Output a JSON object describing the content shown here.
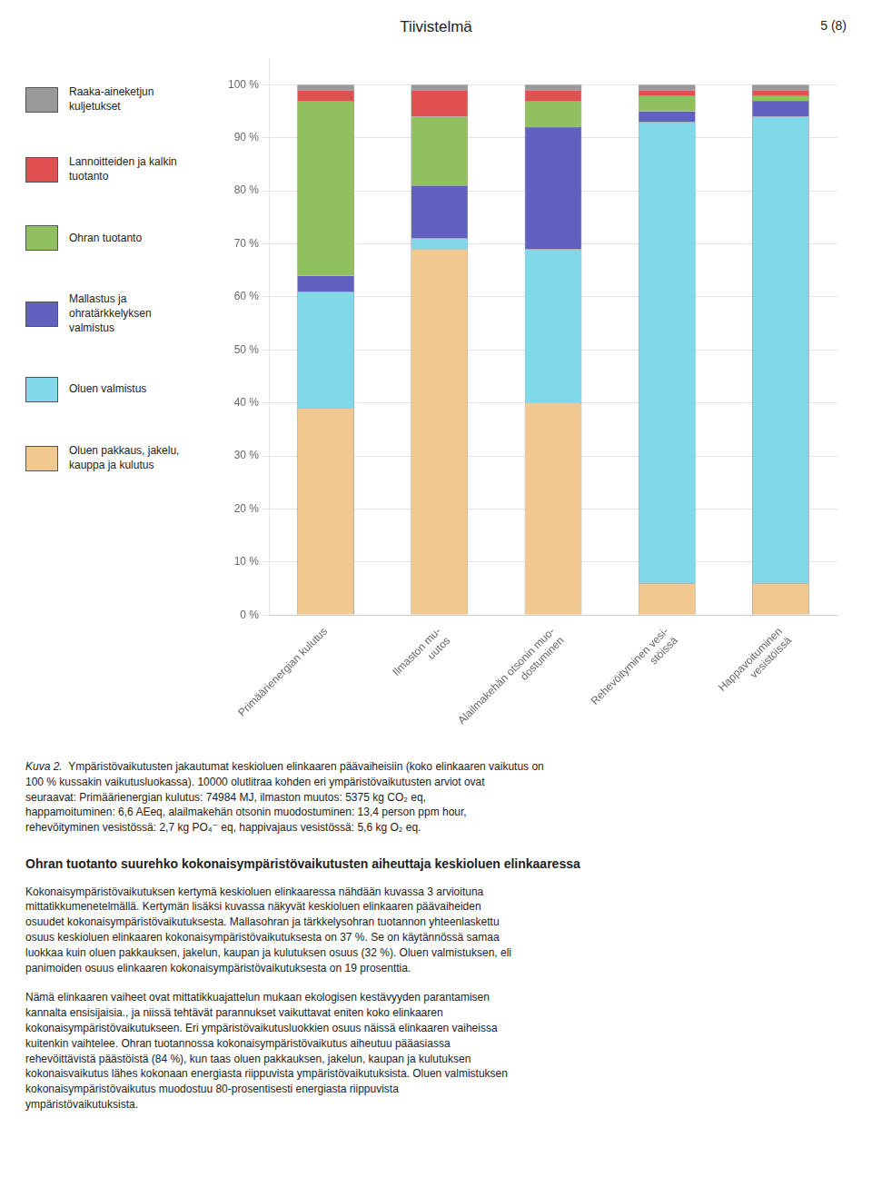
{
  "chart_data": {
    "type": "bar",
    "title": "Tiivistelmä",
    "stacked": true,
    "legend": "left",
    "grid": true,
    "categories": [
      "Primäärienergian kulutus",
      "Ilmaston mu-\nuutos",
      "Alailmakehän otsonin muo-\ndostuminen",
      "Rehevöityminen vesi-\nstöissä",
      "Happavoituminen\nvesistöissä"
    ],
    "series": [
      {
        "name": "Raaka-aineketjun\nkuljetukset",
        "color": "#999999",
        "values": [
          1,
          1,
          1,
          1,
          1
        ]
      },
      {
        "name": "Lannoitteiden ja kalkin\ntuotanto",
        "color": "#e05050",
        "values": [
          2,
          5,
          2,
          1,
          1
        ]
      },
      {
        "name": "Ohran tuotanto",
        "color": "#90c060",
        "values": [
          33,
          13,
          5,
          3,
          1
        ]
      },
      {
        "name": "Mallastus ja\nohratärkkelyksen\nvalmistus",
        "color": "#6060c0",
        "values": [
          3,
          10,
          23,
          2,
          3
        ]
      },
      {
        "name": "Oluen valmistus",
        "color": "#80d8e8",
        "values": [
          22,
          2,
          29,
          87,
          88
        ]
      },
      {
        "name": "Oluen pakkaus, jakelu,\nkauppa ja kulutus",
        "color": "#f0c890",
        "values": [
          39,
          69,
          40,
          6,
          6
        ]
      }
    ],
    "ylim": [
      0,
      105
    ],
    "yticks": [
      {
        "value": 0,
        "label": "0 %"
      },
      {
        "value": 10,
        "label": "10 %"
      },
      {
        "value": 20,
        "label": "20 %"
      },
      {
        "value": 30,
        "label": "30 %"
      },
      {
        "value": 40,
        "label": "40 %"
      },
      {
        "value": 50,
        "label": "50 %"
      },
      {
        "value": 60,
        "label": "60 %"
      },
      {
        "value": 70,
        "label": "70 %"
      },
      {
        "value": 80,
        "label": "80 %"
      },
      {
        "value": 90,
        "label": "90 %"
      },
      {
        "value": 100,
        "label": "100 %"
      }
    ],
    "annotations": [
      "5 (8)",
      "Kuva 2.",
      "  Ympäristövaikutusten jakautumat keskioluen elinkaaren päävaiheisiin (koko elinkaaren vaikutus on\n100 % kussakin vaikutusluokassa). 10000 olutlitraa kohden eri ympäristövaikutusten arviot ovat\nseuraavat: Primäärienergian kulutus: 74984 MJ, ilmaston muutos: 5375 kg CO₂ eq,\nhappamoituminen: 6,6 AEeq, alailmakehän otsonin muodostuminen: 13,4 person ppm hour,\nrehevöityminen vesistössä: 2,7 kg PO₄⁻ eq, happivajaus vesistössä: 5,6 kg O₂ eq.",
      "Ohran tuotanto suurehko kokonaisympäristövaikutusten aiheuttaja keskioluen elinkaaressa",
      "Kokonaisympäristövaikutuksen kertymä keskioluen elinkaaressa nähdään kuvassa 3 arvioituna\nmittatikkumenetelmällä. Kertymän lisäksi kuvassa näkyvät keskioluen elinkaaren päävaiheiden\nosuudet kokonaisympäristövaikutuksesta. Mallasohran ja tärkkelysohran tuotannon yhteenlaskettu\nosuus keskioluen elinkaaren kokonaisympäristövaikutuksesta on 37 %. Se on käytännössä samaa\nluokkaa kuin oluen pakkauksen, jakelun, kaupan ja kulutuksen osuus (32 %). Oluen valmistuksen, eli\npanimoiden osuus elinkaaren kokonaisympäristövaikutuksesta on 19 prosenttia.",
      "Nämä elinkaaren vaiheet ovat mittatikkuajattelun mukaan ekologisen kestävyyden parantamisen\nkannalta ensisijaisia., ja niissä tehtävät parannukset vaikuttavat eniten koko elinkaaren\nkokonaisympäristövaikutukseen. Eri ympäristövaikutusluokkien osuus näissä elinkaaren vaiheissa\nkuitenkin vaihtelee. Ohran tuotannossa kokonaisympäristövaikutus aiheutuu pääasiassa\nrehevöittävistä päästöistä (84 %), kun taas oluen pakkauksen, jakelun, kaupan ja kulutuksen\nkokonaisvaikutus lähes kokonaan energiasta riippuvista ympäristövaikutuksista. Oluen valmistuksen\nkokonaisympäristövaikutus muodostuu 80-prosentisesti energiasta riippuvista\nympäristövaikutuksista."
    ]
  }
}
